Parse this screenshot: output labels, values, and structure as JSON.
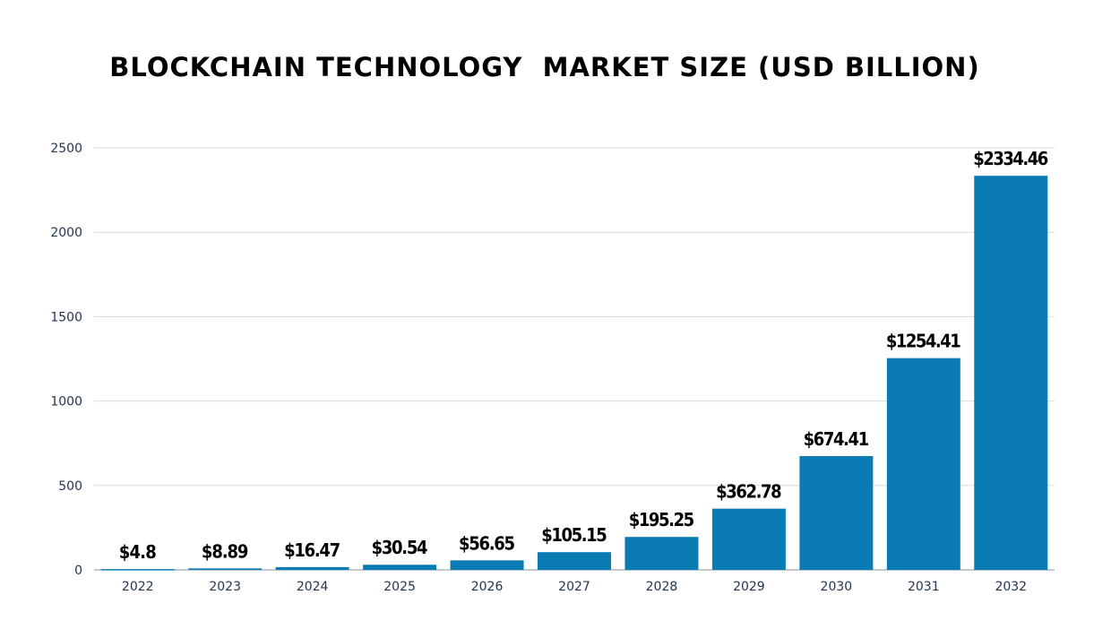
{
  "chart_data": {
    "type": "bar",
    "title": "BLOCKCHAIN TECHNOLOGY  MARKET SIZE (USD BILLION)",
    "xlabel": "",
    "ylabel": "",
    "categories": [
      "2022",
      "2023",
      "2024",
      "2025",
      "2026",
      "2027",
      "2028",
      "2029",
      "2030",
      "2031",
      "2032"
    ],
    "values": [
      4.8,
      8.89,
      16.47,
      30.54,
      56.65,
      105.15,
      195.25,
      362.78,
      674.41,
      1254.41,
      2334.46
    ],
    "data_labels": [
      "$4.8",
      "$8.89",
      "$16.47",
      "$30.54",
      "$56.65",
      "$105.15",
      "$195.25",
      "$362.78",
      "$674.41",
      "$1254.41",
      "$2334.46"
    ],
    "ylim": [
      0,
      2500
    ],
    "yticks": [
      "0",
      "500",
      "1000",
      "1500",
      "2000",
      "2500"
    ],
    "grid": true,
    "colors": {
      "bar": "#0b7bb4",
      "tick_text": "#23364d",
      "grid": "#d9d9d9"
    }
  }
}
